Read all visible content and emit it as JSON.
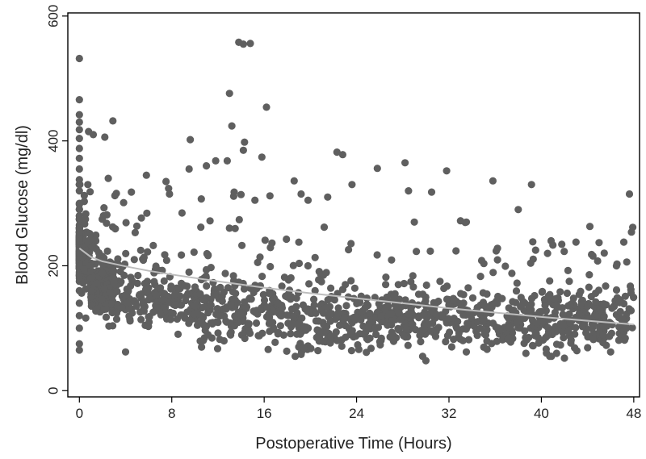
{
  "chart_data": {
    "type": "scatter",
    "title": "",
    "xlabel": "Postoperative Time (Hours)",
    "ylabel": "Blood Glucose (mg/dl)",
    "xlim": [
      -1,
      48.5
    ],
    "ylim": [
      -10,
      605
    ],
    "xticks": [
      0,
      8,
      16,
      24,
      32,
      40,
      48
    ],
    "yticks": [
      0,
      200,
      400,
      600
    ],
    "xtick_labels": [
      "0",
      "8",
      "16",
      "24",
      "32",
      "40",
      "48"
    ],
    "ytick_labels": [
      "0",
      "200",
      "400",
      "600"
    ],
    "grid": false,
    "legend": "none",
    "colors": {
      "points": "#5f5f5f",
      "trend": "#bdbdbd",
      "frame": "#000000"
    },
    "notable_points": [
      {
        "x": 0,
        "y": 532
      },
      {
        "x": 0,
        "y": 466
      },
      {
        "x": 0,
        "y": 442
      },
      {
        "x": 0,
        "y": 430
      },
      {
        "x": 0,
        "y": 418
      },
      {
        "x": 0,
        "y": 404
      },
      {
        "x": 0,
        "y": 388
      },
      {
        "x": 0,
        "y": 372
      },
      {
        "x": 0,
        "y": 355
      },
      {
        "x": 0,
        "y": 338
      },
      {
        "x": 0,
        "y": 320
      },
      {
        "x": 0,
        "y": 300
      },
      {
        "x": 0,
        "y": 280
      },
      {
        "x": 0,
        "y": 260
      },
      {
        "x": 0,
        "y": 240
      },
      {
        "x": 0,
        "y": 220
      },
      {
        "x": 0,
        "y": 200
      },
      {
        "x": 0,
        "y": 180
      },
      {
        "x": 0,
        "y": 160
      },
      {
        "x": 0,
        "y": 140
      },
      {
        "x": 0,
        "y": 120
      },
      {
        "x": 0,
        "y": 100
      },
      {
        "x": 0,
        "y": 75
      },
      {
        "x": 0,
        "y": 65
      },
      {
        "x": 0.8,
        "y": 415
      },
      {
        "x": 1.2,
        "y": 410
      },
      {
        "x": 2.2,
        "y": 406
      },
      {
        "x": 2.5,
        "y": 340
      },
      {
        "x": 2.9,
        "y": 432
      },
      {
        "x": 3.2,
        "y": 316
      },
      {
        "x": 4.5,
        "y": 318
      },
      {
        "x": 5.8,
        "y": 345
      },
      {
        "x": 7.5,
        "y": 335
      },
      {
        "x": 7.8,
        "y": 315
      },
      {
        "x": 9.5,
        "y": 355
      },
      {
        "x": 9.6,
        "y": 402
      },
      {
        "x": 11.0,
        "y": 360
      },
      {
        "x": 11.8,
        "y": 368
      },
      {
        "x": 12.8,
        "y": 368
      },
      {
        "x": 13.0,
        "y": 476
      },
      {
        "x": 13.2,
        "y": 424
      },
      {
        "x": 13.4,
        "y": 318
      },
      {
        "x": 13.8,
        "y": 558
      },
      {
        "x": 14.2,
        "y": 555
      },
      {
        "x": 14.8,
        "y": 556
      },
      {
        "x": 14.3,
        "y": 398
      },
      {
        "x": 14.2,
        "y": 385
      },
      {
        "x": 14.0,
        "y": 314
      },
      {
        "x": 15.2,
        "y": 305
      },
      {
        "x": 15.8,
        "y": 374
      },
      {
        "x": 16.2,
        "y": 454
      },
      {
        "x": 16.5,
        "y": 312
      },
      {
        "x": 18.6,
        "y": 336
      },
      {
        "x": 19.2,
        "y": 315
      },
      {
        "x": 19.8,
        "y": 305
      },
      {
        "x": 21.5,
        "y": 310
      },
      {
        "x": 22.3,
        "y": 382
      },
      {
        "x": 22.8,
        "y": 378
      },
      {
        "x": 23.6,
        "y": 330
      },
      {
        "x": 25.8,
        "y": 356
      },
      {
        "x": 28.2,
        "y": 365
      },
      {
        "x": 28.5,
        "y": 320
      },
      {
        "x": 29.0,
        "y": 270
      },
      {
        "x": 30.5,
        "y": 318
      },
      {
        "x": 31.8,
        "y": 352
      },
      {
        "x": 33.0,
        "y": 272
      },
      {
        "x": 33.5,
        "y": 270
      },
      {
        "x": 35.8,
        "y": 336
      },
      {
        "x": 36.2,
        "y": 228
      },
      {
        "x": 38.0,
        "y": 290
      },
      {
        "x": 39.5,
        "y": 225
      },
      {
        "x": 41.0,
        "y": 233
      },
      {
        "x": 43.0,
        "y": 238
      },
      {
        "x": 44.2,
        "y": 263
      },
      {
        "x": 45.0,
        "y": 237
      },
      {
        "x": 46.5,
        "y": 200
      },
      {
        "x": 47.8,
        "y": 254
      },
      {
        "x": 30.0,
        "y": 48
      },
      {
        "x": 19.2,
        "y": 58
      },
      {
        "x": 42.0,
        "y": 52
      },
      {
        "x": 46.0,
        "y": 62
      },
      {
        "x": 33.5,
        "y": 62
      },
      {
        "x": 4.0,
        "y": 62
      },
      {
        "x": 24.2,
        "y": 66
      }
    ],
    "bulk": {
      "n": 1650,
      "description": "dense cloud, median decreasing with time",
      "trend": [
        {
          "x": 0,
          "y": 235
        },
        {
          "x": 1,
          "y": 212
        },
        {
          "x": 2,
          "y": 205
        },
        {
          "x": 4,
          "y": 196
        },
        {
          "x": 8,
          "y": 183
        },
        {
          "x": 12,
          "y": 170
        },
        {
          "x": 16,
          "y": 160
        },
        {
          "x": 20,
          "y": 152
        },
        {
          "x": 24,
          "y": 144
        },
        {
          "x": 28,
          "y": 136
        },
        {
          "x": 32,
          "y": 129
        },
        {
          "x": 36,
          "y": 122
        },
        {
          "x": 40,
          "y": 116
        },
        {
          "x": 44,
          "y": 111
        },
        {
          "x": 48,
          "y": 106
        }
      ]
    },
    "trend_line": [
      {
        "x": 0,
        "y": 228
      },
      {
        "x": 1,
        "y": 214
      },
      {
        "x": 2,
        "y": 207
      },
      {
        "x": 4,
        "y": 199
      },
      {
        "x": 6,
        "y": 192
      },
      {
        "x": 8,
        "y": 186
      },
      {
        "x": 12,
        "y": 175
      },
      {
        "x": 16,
        "y": 165
      },
      {
        "x": 20,
        "y": 156
      },
      {
        "x": 24,
        "y": 148
      },
      {
        "x": 28,
        "y": 140
      },
      {
        "x": 32,
        "y": 132
      },
      {
        "x": 36,
        "y": 125
      },
      {
        "x": 40,
        "y": 118
      },
      {
        "x": 44,
        "y": 112
      },
      {
        "x": 48,
        "y": 106
      }
    ]
  }
}
